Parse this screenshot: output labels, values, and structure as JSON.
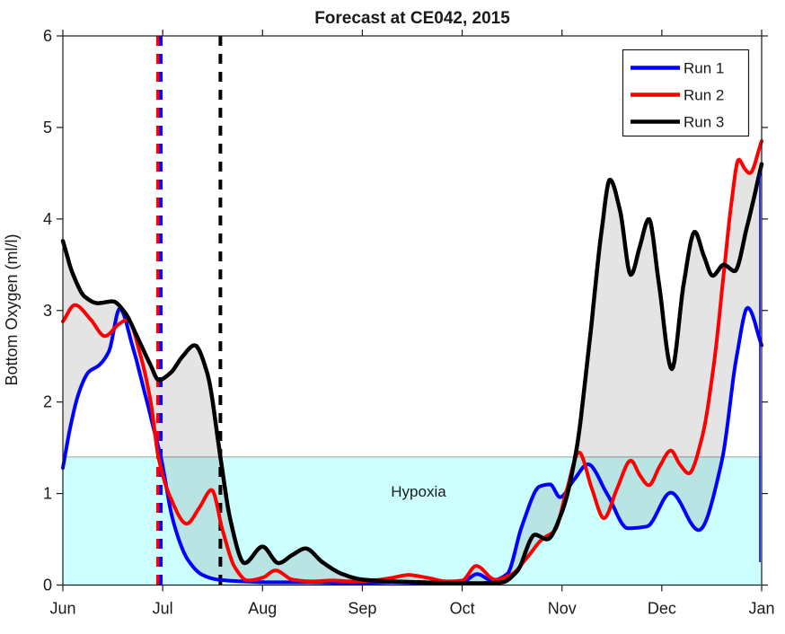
{
  "chart_data": {
    "type": "line",
    "title": "Forecast at CE042, 2015",
    "ylabel": "Bottom Oxygen (ml/l)",
    "ylim": [
      0,
      6
    ],
    "y_ticks": [
      0,
      1,
      2,
      3,
      4,
      5,
      6
    ],
    "x_tick_labels": [
      "Jun",
      "Jul",
      "Aug",
      "Sep",
      "Oct",
      "Nov",
      "Dec",
      "Jan"
    ],
    "x_unit": "months after Jun 1 (0 = Jun, 7 = Jan)",
    "grid": false,
    "legend_position": "top-right",
    "hypoxia_region": {
      "label": "Hypoxia",
      "threshold_mll": 1.4,
      "fill": "#ccffff",
      "edge": "#9e9e9e"
    },
    "envelope": {
      "description": "shaded min-max range across the three runs",
      "fill": "rgba(64,64,64,0.14)"
    },
    "series": [
      {
        "name": "Run 1",
        "color": "#0000ff",
        "width": 4,
        "points": [
          [
            0,
            1.28
          ],
          [
            0.07,
            1.7
          ],
          [
            0.16,
            2.1
          ],
          [
            0.26,
            2.33
          ],
          [
            0.36,
            2.4
          ],
          [
            0.46,
            2.55
          ],
          [
            0.57,
            3.02
          ],
          [
            0.7,
            2.6
          ],
          [
            0.82,
            2.1
          ],
          [
            0.93,
            1.62
          ],
          [
            0.985,
            1.38
          ],
          [
            1.1,
            0.72
          ],
          [
            1.25,
            0.28
          ],
          [
            1.4,
            0.11
          ],
          [
            1.55,
            0.06
          ],
          [
            1.8,
            0.04
          ],
          [
            2.1,
            0.03
          ],
          [
            2.5,
            0.03
          ],
          [
            2.9,
            0.02
          ],
          [
            3.3,
            0.03
          ],
          [
            3.7,
            0.02
          ],
          [
            4.0,
            0.03
          ],
          [
            4.15,
            0.12
          ],
          [
            4.3,
            0.05
          ],
          [
            4.45,
            0.12
          ],
          [
            4.6,
            0.65
          ],
          [
            4.78,
            1.08
          ],
          [
            4.88,
            1.1
          ],
          [
            4.98,
            0.96
          ],
          [
            5.12,
            1.15
          ],
          [
            5.26,
            1.32
          ],
          [
            5.45,
            1.0
          ],
          [
            5.66,
            0.62
          ],
          [
            5.85,
            0.64
          ],
          [
            6.09,
            1.01
          ],
          [
            6.37,
            0.6
          ],
          [
            6.6,
            1.35
          ],
          [
            6.75,
            2.5
          ],
          [
            6.86,
            3.03
          ],
          [
            7,
            2.62
          ]
        ]
      },
      {
        "name": "Run 2",
        "color": "#ff0000",
        "width": 4,
        "points": [
          [
            0,
            2.88
          ],
          [
            0.12,
            3.06
          ],
          [
            0.28,
            2.9
          ],
          [
            0.42,
            2.72
          ],
          [
            0.56,
            2.85
          ],
          [
            0.65,
            2.9
          ],
          [
            0.78,
            2.5
          ],
          [
            0.88,
            2.0
          ],
          [
            0.96,
            1.38
          ],
          [
            1.08,
            0.95
          ],
          [
            1.24,
            0.67
          ],
          [
            1.37,
            0.85
          ],
          [
            1.49,
            1.04
          ],
          [
            1.6,
            0.6
          ],
          [
            1.72,
            0.2
          ],
          [
            1.85,
            0.05
          ],
          [
            2.0,
            0.08
          ],
          [
            2.13,
            0.16
          ],
          [
            2.3,
            0.06
          ],
          [
            2.5,
            0.04
          ],
          [
            2.7,
            0.05
          ],
          [
            2.9,
            0.04
          ],
          [
            3.1,
            0.05
          ],
          [
            3.3,
            0.08
          ],
          [
            3.46,
            0.11
          ],
          [
            3.65,
            0.08
          ],
          [
            3.85,
            0.04
          ],
          [
            4.0,
            0.05
          ],
          [
            4.14,
            0.21
          ],
          [
            4.33,
            0.06
          ],
          [
            4.5,
            0.12
          ],
          [
            4.65,
            0.3
          ],
          [
            4.8,
            0.5
          ],
          [
            4.93,
            0.6
          ],
          [
            5.05,
            1.05
          ],
          [
            5.17,
            1.45
          ],
          [
            5.3,
            1.05
          ],
          [
            5.42,
            0.73
          ],
          [
            5.55,
            1.05
          ],
          [
            5.69,
            1.36
          ],
          [
            5.78,
            1.2
          ],
          [
            5.87,
            1.09
          ],
          [
            5.98,
            1.3
          ],
          [
            6.09,
            1.47
          ],
          [
            6.18,
            1.32
          ],
          [
            6.27,
            1.22
          ],
          [
            6.4,
            1.6
          ],
          [
            6.52,
            2.4
          ],
          [
            6.62,
            3.4
          ],
          [
            6.7,
            4.2
          ],
          [
            6.77,
            4.65
          ],
          [
            6.83,
            4.55
          ],
          [
            6.88,
            4.5
          ],
          [
            7,
            4.85
          ]
        ]
      },
      {
        "name": "Run 3",
        "color": "#000000",
        "width": 4.5,
        "points": [
          [
            0,
            3.76
          ],
          [
            0.1,
            3.4
          ],
          [
            0.22,
            3.15
          ],
          [
            0.35,
            3.08
          ],
          [
            0.5,
            3.1
          ],
          [
            0.62,
            2.98
          ],
          [
            0.75,
            2.7
          ],
          [
            0.88,
            2.4
          ],
          [
            0.96,
            2.24
          ],
          [
            1.08,
            2.32
          ],
          [
            1.2,
            2.5
          ],
          [
            1.32,
            2.62
          ],
          [
            1.45,
            2.3
          ],
          [
            1.578,
            1.4
          ],
          [
            1.68,
            0.7
          ],
          [
            1.82,
            0.24
          ],
          [
            2.0,
            0.42
          ],
          [
            2.16,
            0.24
          ],
          [
            2.3,
            0.33
          ],
          [
            2.43,
            0.4
          ],
          [
            2.6,
            0.25
          ],
          [
            2.8,
            0.12
          ],
          [
            3.0,
            0.06
          ],
          [
            3.3,
            0.04
          ],
          [
            3.6,
            0.03
          ],
          [
            3.9,
            0.02
          ],
          [
            4.2,
            0.02
          ],
          [
            4.4,
            0.03
          ],
          [
            4.55,
            0.15
          ],
          [
            4.73,
            0.55
          ],
          [
            4.85,
            0.5
          ],
          [
            5.0,
            0.8
          ],
          [
            5.14,
            1.45
          ],
          [
            5.28,
            2.7
          ],
          [
            5.4,
            3.9
          ],
          [
            5.48,
            4.43
          ],
          [
            5.58,
            4.1
          ],
          [
            5.69,
            3.39
          ],
          [
            5.78,
            3.7
          ],
          [
            5.87,
            4.0
          ],
          [
            5.97,
            3.3
          ],
          [
            6.1,
            2.36
          ],
          [
            6.22,
            3.3
          ],
          [
            6.33,
            3.86
          ],
          [
            6.42,
            3.6
          ],
          [
            6.51,
            3.38
          ],
          [
            6.62,
            3.5
          ],
          [
            6.73,
            3.43
          ],
          [
            6.85,
            3.9
          ],
          [
            7,
            4.6
          ]
        ]
      }
    ],
    "event_lines": [
      {
        "run": "Run 2",
        "color": "#ff0000",
        "style": "dashed",
        "month": 0.951
      },
      {
        "run": "Run 1",
        "color": "#0000ff",
        "style": "dashed",
        "month": 0.982
      },
      {
        "run": "Run 3",
        "color": "#000000",
        "style": "dashed",
        "month": 1.578
      }
    ],
    "right_edge_line": {
      "month": 6.99,
      "from": 0.25,
      "to": 4.5,
      "color": "#0000ff"
    }
  },
  "legend": {
    "entries": [
      {
        "label": "Run 1",
        "color": "#0000ff"
      },
      {
        "label": "Run 2",
        "color": "#ff0000"
      },
      {
        "label": "Run 3",
        "color": "#000000"
      }
    ]
  },
  "colors": {
    "axis": "#1a1a1a",
    "background": "#ffffff"
  }
}
